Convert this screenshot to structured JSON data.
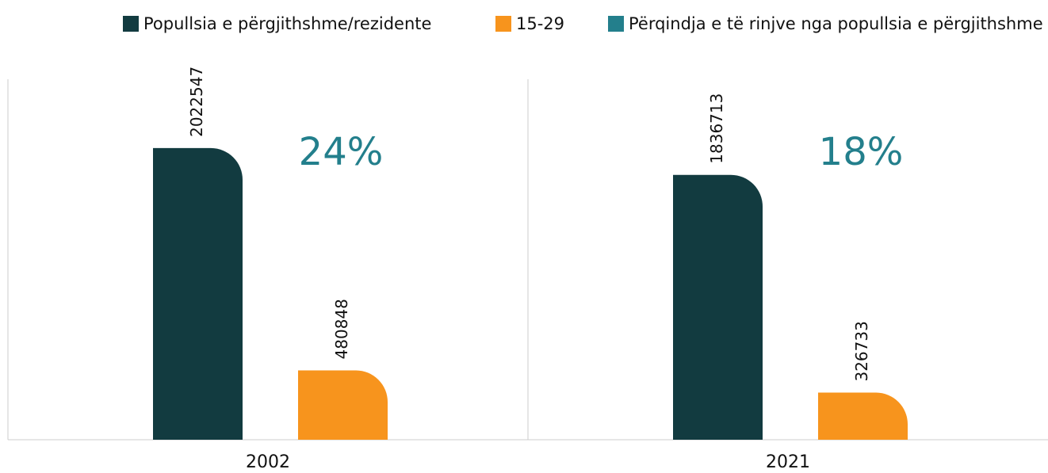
{
  "chart_data": {
    "type": "bar",
    "categories": [
      "2002",
      "2021"
    ],
    "series": [
      {
        "name": "Popullsia e përgjithshme/rezidente",
        "color": "#123b40",
        "values": [
          2022547,
          1836713
        ]
      },
      {
        "name": "15-29",
        "color": "#f7941d",
        "values": [
          480848,
          326733
        ]
      },
      {
        "name": "Përqindja e të rinjve nga popullsia e përgjithshme",
        "color": "#237f8c",
        "values": [
          24,
          18
        ],
        "value_labels": [
          "24%",
          "18%"
        ]
      }
    ],
    "ylim": [
      0,
      2500000
    ]
  }
}
